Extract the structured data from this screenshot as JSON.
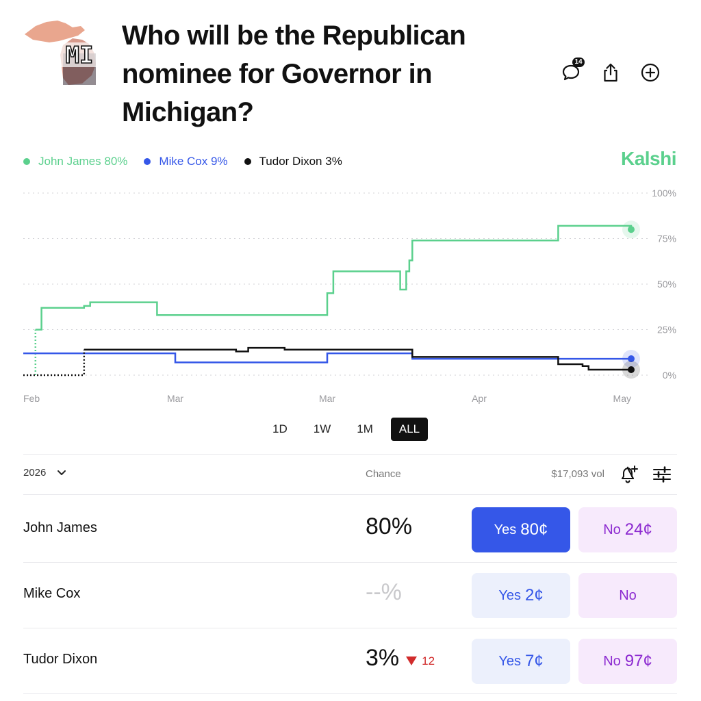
{
  "market": {
    "title": "Who will be the Republican nominee for Governor in Michigan?",
    "image_label": "MI",
    "comment_count": "14"
  },
  "icons": {
    "comment": "comment-bubble-icon",
    "share": "share-icon",
    "add": "add-circle-icon",
    "chevron": "chevron-down-icon",
    "alert": "bell-plus-icon",
    "filter": "sliders-icon"
  },
  "brand": {
    "name": "Kalshi",
    "color": "#5bd08d"
  },
  "legend": [
    {
      "label": "John James 80%",
      "color": "#5bd08d"
    },
    {
      "label": "Mike Cox 9%",
      "color": "#3557e8"
    },
    {
      "label": "Tudor Dixon 3%",
      "color": "#111111"
    }
  ],
  "chart_data": {
    "type": "line",
    "step": true,
    "x_ticks": [
      "Feb",
      "Mar",
      "Mar",
      "Apr",
      "May"
    ],
    "y_ticks": [
      "100%",
      "75%",
      "50%",
      "25%",
      "0%"
    ],
    "ylim": [
      0,
      100
    ],
    "x_unit": "days",
    "xlim": [
      0,
      100
    ],
    "x_tick_positions": [
      0,
      25,
      50,
      75,
      100
    ],
    "grid": true,
    "series": [
      {
        "name": "John James",
        "color": "#5bd08d",
        "points": [
          [
            2,
            0
          ],
          [
            2,
            25
          ],
          [
            3,
            25
          ],
          [
            3,
            37
          ],
          [
            10,
            37
          ],
          [
            10,
            38
          ],
          [
            11,
            38
          ],
          [
            11,
            40
          ],
          [
            22,
            40
          ],
          [
            22,
            33
          ],
          [
            50,
            33
          ],
          [
            50,
            45
          ],
          [
            51,
            45
          ],
          [
            51,
            57
          ],
          [
            62,
            57
          ],
          [
            62,
            47
          ],
          [
            63,
            47
          ],
          [
            63,
            57
          ],
          [
            63.5,
            57
          ],
          [
            63.5,
            63
          ],
          [
            64,
            63
          ],
          [
            64,
            74
          ],
          [
            88,
            74
          ],
          [
            88,
            82
          ],
          [
            100,
            82
          ],
          [
            100,
            80
          ]
        ]
      },
      {
        "name": "Mike Cox",
        "color": "#3557e8",
        "points": [
          [
            0,
            12
          ],
          [
            25,
            12
          ],
          [
            25,
            7
          ],
          [
            50,
            7
          ],
          [
            50,
            12
          ],
          [
            64,
            12
          ],
          [
            64,
            9
          ],
          [
            100,
            9
          ]
        ]
      },
      {
        "name": "Tudor Dixon",
        "color": "#111111",
        "points": [
          [
            0,
            0
          ],
          [
            10,
            0
          ],
          [
            10,
            14
          ],
          [
            35,
            14
          ],
          [
            35,
            13
          ],
          [
            37,
            13
          ],
          [
            37,
            15
          ],
          [
            43,
            15
          ],
          [
            43,
            14
          ],
          [
            64,
            14
          ],
          [
            64,
            10
          ],
          [
            88,
            10
          ],
          [
            88,
            6
          ],
          [
            92,
            6
          ],
          [
            92,
            5
          ],
          [
            93,
            5
          ],
          [
            93,
            3
          ],
          [
            100,
            3
          ]
        ]
      }
    ],
    "end_values": [
      80,
      9,
      3
    ]
  },
  "ranges": [
    "1D",
    "1W",
    "1M",
    "ALL"
  ],
  "active_range": "ALL",
  "table": {
    "year": "2026",
    "chance_label": "Chance",
    "volume": "$17,093 vol"
  },
  "rows": [
    {
      "name": "John James",
      "chance": "80%",
      "change": "",
      "yes_prefix": "Yes",
      "yes_price": "80¢",
      "no_prefix": "No",
      "no_price": "24¢",
      "selected": true
    },
    {
      "name": "Mike Cox",
      "chance": "--%",
      "change": "",
      "yes_prefix": "Yes",
      "yes_price": "2¢",
      "no_prefix": "No",
      "no_price": "",
      "selected": false
    },
    {
      "name": "Tudor Dixon",
      "chance": "3%",
      "change": "12",
      "yes_prefix": "Yes",
      "yes_price": "7¢",
      "no_prefix": "No",
      "no_price": "97¢",
      "selected": false
    }
  ]
}
